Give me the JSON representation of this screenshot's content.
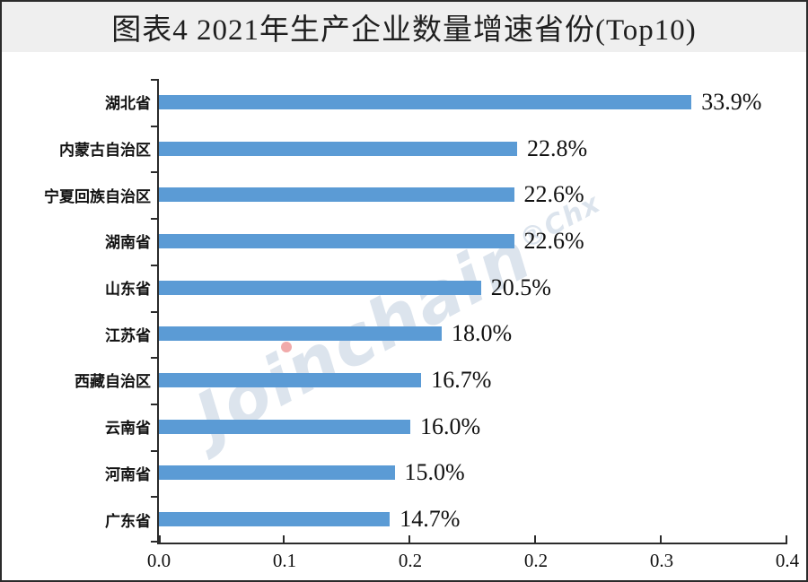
{
  "title": "图表4  2021年生产企业数量增速省份(Top10)",
  "chart_data": {
    "type": "bar",
    "orientation": "horizontal",
    "title": "图表4  2021年生产企业数量增速省份(Top10)",
    "categories": [
      "湖北省",
      "内蒙古自治区",
      "宁夏回族自治区",
      "湖南省",
      "山东省",
      "江苏省",
      "西藏自治区",
      "云南省",
      "河南省",
      "广东省"
    ],
    "values": [
      0.339,
      0.228,
      0.226,
      0.226,
      0.205,
      0.18,
      0.167,
      0.16,
      0.15,
      0.147
    ],
    "value_labels": [
      "33.9%",
      "22.8%",
      "22.6%",
      "22.6%",
      "20.5%",
      "18.0%",
      "16.7%",
      "16.0%",
      "15.0%",
      "14.7%"
    ],
    "xlim": [
      0,
      0.4
    ],
    "x_tick_labels": [
      "0.0",
      "0.1",
      "0.2",
      "0.2",
      "0.3",
      "0.4"
    ],
    "grid": false,
    "legend": "none",
    "bar_color": "#5B9BD5"
  },
  "watermark": {
    "text": "Joinchain",
    "suffix": "®Chx"
  },
  "colors": {
    "bar": "#5B9BD5",
    "title_text": "#1f1f1f",
    "title_band_bg": "#efefef",
    "axis": "#2b2b2b",
    "watermark_text": "rgba(130,158,192,0.28)",
    "watermark_dot": "rgba(228,85,85,0.5)"
  }
}
